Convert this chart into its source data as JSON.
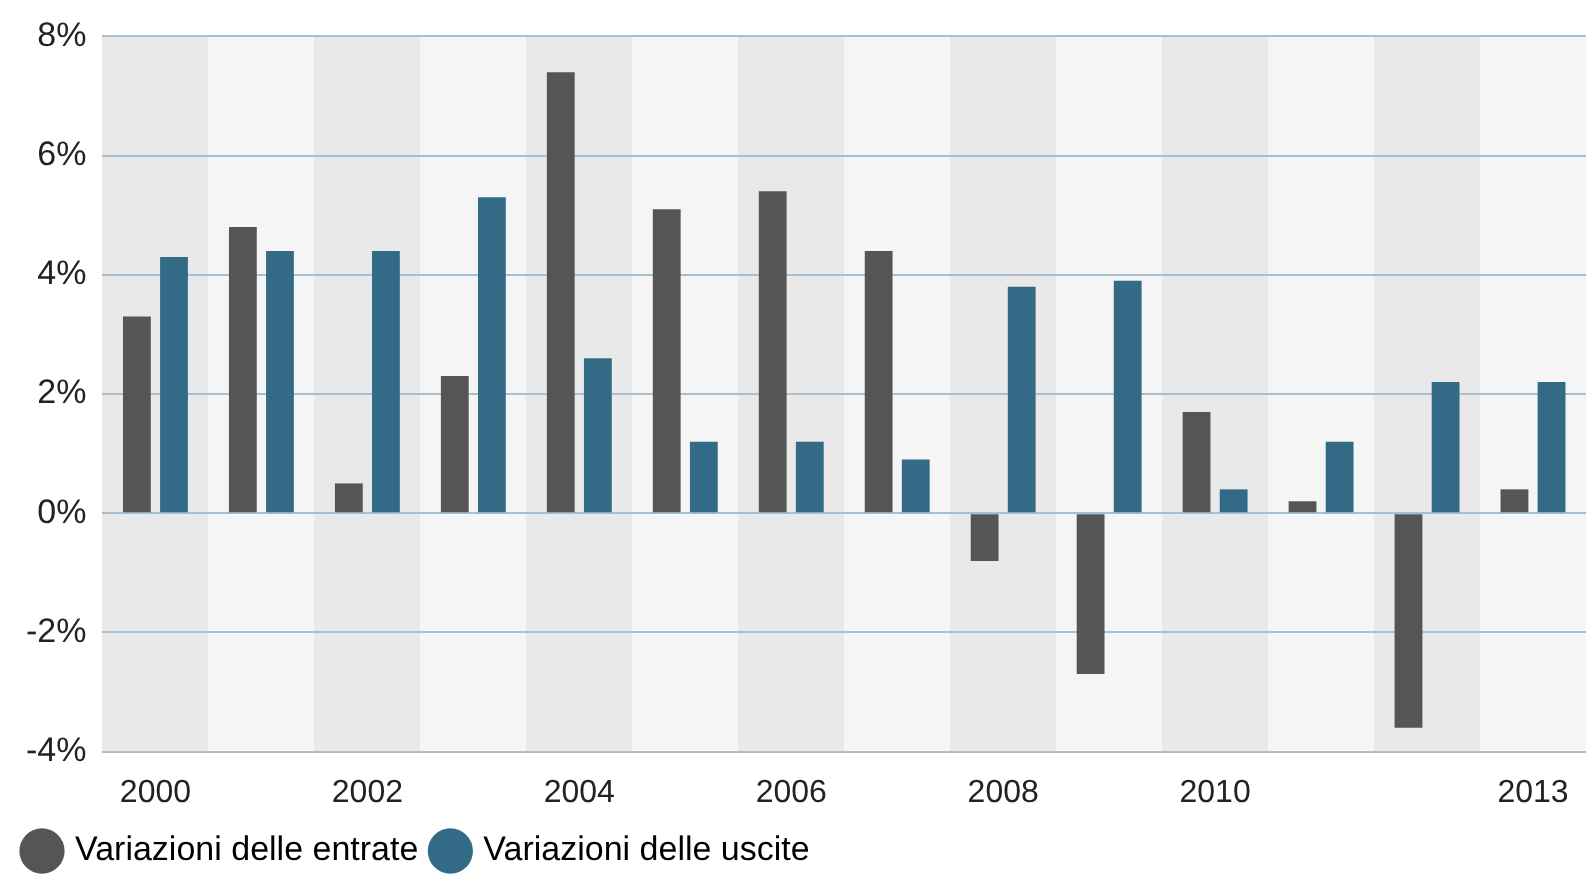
{
  "chart_data": {
    "type": "bar",
    "categories": [
      "2000",
      null,
      "2002",
      null,
      "2004",
      null,
      "2006",
      null,
      "2008",
      null,
      "2010",
      null,
      null,
      "2013"
    ],
    "series": [
      {
        "name": "Variazioni delle entrate",
        "color": "#555555",
        "values": [
          3.3,
          4.8,
          0.5,
          2.3,
          7.4,
          5.1,
          5.4,
          4.4,
          -0.8,
          -2.7,
          1.7,
          0.2,
          -3.6,
          0.4
        ]
      },
      {
        "name": "Variazioni delle uscite",
        "color": "#336b87",
        "values": [
          4.3,
          4.4,
          4.4,
          5.3,
          2.6,
          1.2,
          1.2,
          0.9,
          3.8,
          3.9,
          0.4,
          1.2,
          2.2,
          2.2
        ]
      }
    ],
    "ylim": [
      -4,
      8
    ],
    "yticks": [
      {
        "value": -4,
        "label": "-4%"
      },
      {
        "value": -2,
        "label": "-2%"
      },
      {
        "value": 0,
        "label": "0%"
      },
      {
        "value": 2,
        "label": "2%"
      },
      {
        "value": 4,
        "label": "4%"
      },
      {
        "value": 6,
        "label": "6%"
      },
      {
        "value": 8,
        "label": "8%"
      }
    ],
    "grid": "y",
    "legend": "bottom left"
  }
}
